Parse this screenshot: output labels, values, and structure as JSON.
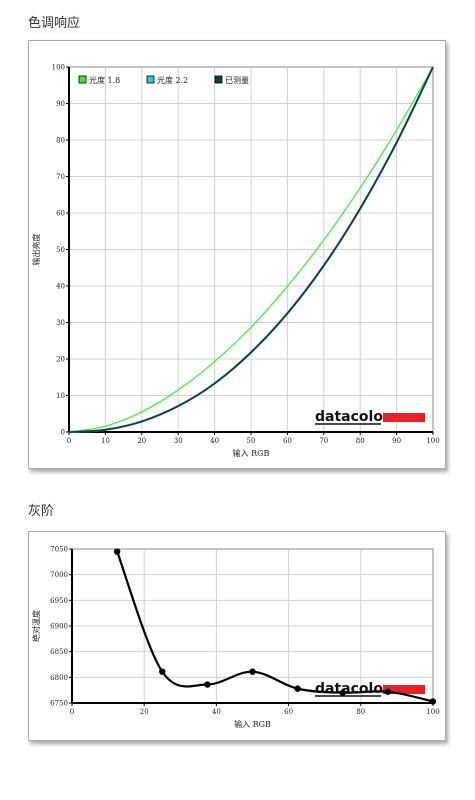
{
  "sections": {
    "tone_title": "色调响应",
    "gray_title": "灰阶"
  },
  "brand": {
    "logo_text": "datacolor",
    "logo_color": "#e8202a"
  },
  "chart_data": [
    {
      "type": "line",
      "title": "色调响应",
      "xlabel": "输入 RGB",
      "ylabel": "输出亮度",
      "xlim": [
        0,
        100
      ],
      "ylim": [
        0,
        100
      ],
      "xticks": [
        0,
        10,
        20,
        30,
        40,
        50,
        60,
        70,
        80,
        90,
        100
      ],
      "yticks": [
        0,
        10,
        20,
        30,
        40,
        50,
        60,
        70,
        80,
        90,
        100
      ],
      "grid": true,
      "legend_position": "top-left",
      "x": [
        0,
        10,
        20,
        30,
        40,
        50,
        60,
        70,
        80,
        90,
        100
      ],
      "series": [
        {
          "name": "光度 1.8",
          "color": "#33ee33",
          "values": [
            0,
            1.6,
            5.5,
            11.5,
            19.3,
            28.7,
            39.9,
            52.6,
            66.9,
            82.7,
            100
          ]
        },
        {
          "name": "光度 2.2",
          "color": "#33cccc",
          "values": [
            0,
            0.6,
            2.9,
            7.1,
            13.3,
            21.8,
            32.5,
            45.6,
            61.2,
            79.3,
            100
          ]
        },
        {
          "name": "已测量",
          "color": "#1a3a3a",
          "values": [
            0,
            0.6,
            2.9,
            7.1,
            13.3,
            21.8,
            32.5,
            45.6,
            61.2,
            79.3,
            100
          ]
        }
      ]
    },
    {
      "type": "line",
      "title": "灰阶",
      "xlabel": "输入 RGB",
      "ylabel": "绝对温度",
      "xlim": [
        0,
        100
      ],
      "ylim": [
        6750,
        7050
      ],
      "xticks": [
        0,
        20,
        40,
        60,
        80,
        100
      ],
      "yticks": [
        6750,
        6800,
        6850,
        6900,
        6950,
        7000,
        7050
      ],
      "grid": true,
      "series": [
        {
          "name": "",
          "color": "#000000",
          "x": [
            12.5,
            25,
            37.5,
            50,
            62.5,
            75,
            87.5,
            100
          ],
          "values": [
            7045,
            6811,
            6786,
            6811,
            6778,
            6770,
            6772,
            6753
          ]
        }
      ]
    }
  ]
}
